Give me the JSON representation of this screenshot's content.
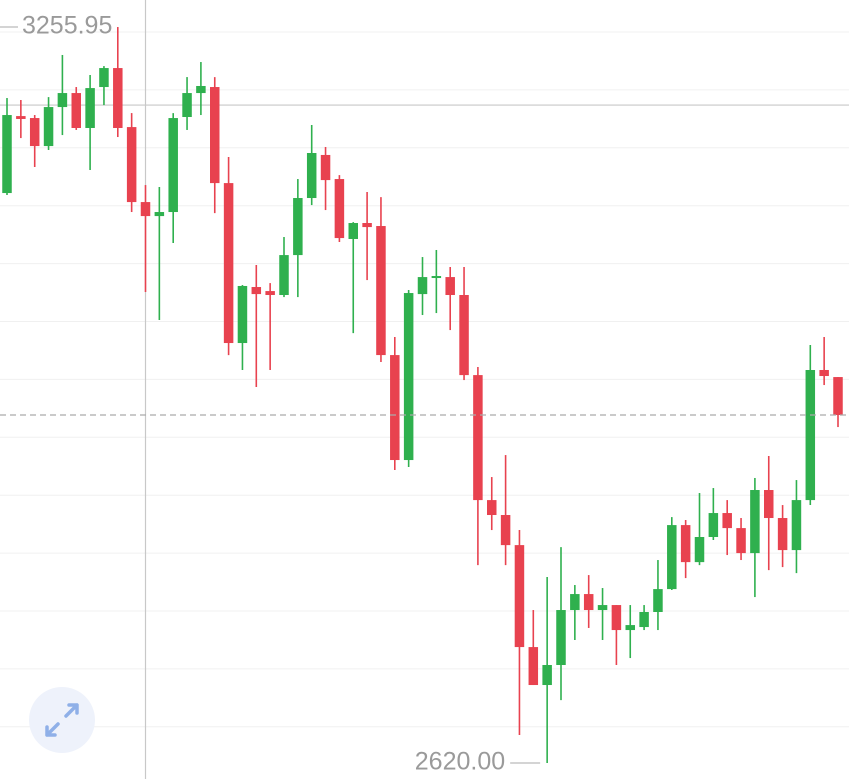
{
  "chart_data": {
    "type": "candlestick",
    "up_color": "#2fb04e",
    "down_color": "#e8424f",
    "ylim": [
      2606.2,
      3279.3
    ],
    "open": [
      3112.5,
      3179.0,
      3177.3,
      3153.1,
      3186.8,
      3198.9,
      3168.7,
      3204.1,
      3220.5,
      3169.5,
      3104.7,
      3092.6,
      3096.1,
      3178.2,
      3198.9,
      3204.1,
      3121.1,
      2982.9,
      3031.3,
      3027.8,
      3024.4,
      3058.9,
      3108.2,
      3145.4,
      3124.6,
      3072.8,
      3086.6,
      3084.0,
      2972.5,
      2881.8,
      3025.2,
      3039.1,
      3039.9,
      3024.4,
      2955.2,
      2847.2,
      2834.3,
      2808.3,
      2720.2,
      2687.4,
      2704.7,
      2752.2,
      2766.0,
      2752.2,
      2756.5,
      2734.9,
      2737.5,
      2750.5,
      2770.3,
      2825.6,
      2793.6,
      2815.3,
      2836.0,
      2823.0,
      2801.4,
      2855.9,
      2831.7,
      2804.0,
      2847.2,
      2959.6,
      2953.5
    ],
    "high": [
      3194.6,
      3192.9,
      3179.9,
      3195.4,
      3231.8,
      3204.1,
      3214.5,
      3222.2,
      3255.95,
      3181.6,
      3119.4,
      3117.7,
      3181.6,
      3212.7,
      3225.7,
      3212.7,
      3143.6,
      3033.0,
      3050.3,
      3034.7,
      3074.5,
      3124.6,
      3171.3,
      3152.3,
      3128.0,
      3087.4,
      3113.4,
      3109.0,
      2988.1,
      3028.7,
      3057.2,
      3063.3,
      3048.6,
      3048.6,
      2962.2,
      2867.1,
      2886.1,
      2821.3,
      2752.2,
      2780.7,
      2806.6,
      2773.8,
      2782.4,
      2771.2,
      2756.5,
      2756.5,
      2756.5,
      2795.4,
      2832.5,
      2830.0,
      2853.3,
      2857.6,
      2847.2,
      2831.7,
      2866.3,
      2885.3,
      2842.9,
      2864.5,
      2981.2,
      2988.1,
      2953.5
    ],
    "low": [
      3110.8,
      3160.0,
      3135.0,
      3149.7,
      3162.6,
      3167.0,
      3132.4,
      3188.5,
      3160.9,
      3096.1,
      3027.0,
      3002.8,
      3069.3,
      3167.0,
      3179.9,
      3095.2,
      2972.5,
      2959.6,
      2944.9,
      2959.6,
      3022.6,
      3022.6,
      3102.1,
      3097.8,
      3070.2,
      2991.5,
      3037.3,
      2966.5,
      2873.2,
      2875.8,
      3007.1,
      3008.8,
      2994.1,
      2950.9,
      2791.0,
      2821.3,
      2791.0,
      2644.2,
      2687.4,
      2620.0,
      2674.4,
      2726.3,
      2736.7,
      2726.3,
      2704.7,
      2710.7,
      2734.9,
      2734.9,
      2769.5,
      2779.8,
      2791.0,
      2812.7,
      2799.7,
      2795.4,
      2763.4,
      2786.7,
      2789.3,
      2784.1,
      2842.9,
      2946.6,
      2910.3
    ],
    "close": [
      3179.9,
      3176.5,
      3153.1,
      3186.8,
      3198.9,
      3168.7,
      3203.2,
      3220.5,
      3168.7,
      3104.7,
      3092.6,
      3096.1,
      3177.3,
      3198.9,
      3205.0,
      3121.1,
      2982.9,
      3032.2,
      3025.2,
      3024.4,
      3058.9,
      3108.2,
      3147.1,
      3123.7,
      3073.6,
      3086.6,
      3083.1,
      2972.5,
      2881.8,
      3026.1,
      3039.9,
      3040.8,
      3024.4,
      2955.2,
      2847.2,
      2834.3,
      2808.3,
      2720.2,
      2687.4,
      2704.7,
      2752.2,
      2766.0,
      2752.2,
      2756.5,
      2734.9,
      2739.2,
      2750.5,
      2770.3,
      2825.6,
      2793.6,
      2815.3,
      2836.0,
      2823.0,
      2801.4,
      2855.9,
      2831.7,
      2804.0,
      2847.2,
      2959.6,
      2954.4,
      2920.7
    ],
    "annotations": [
      {
        "text": "3255.95",
        "index": 8,
        "value": 3255.95
      },
      {
        "text": "2620.00",
        "index": 39,
        "value": 2620.0
      }
    ],
    "crosshair": {
      "index": 10,
      "value": 3188.5
    }
  }
}
